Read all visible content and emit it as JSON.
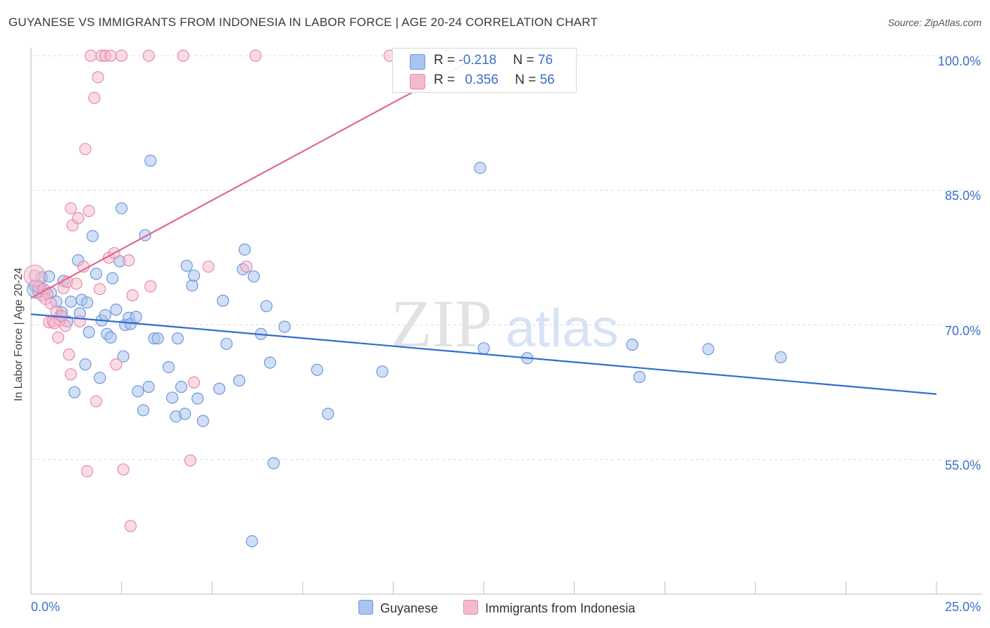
{
  "title": "GUYANESE VS IMMIGRANTS FROM INDONESIA IN LABOR FORCE | AGE 20-24 CORRELATION CHART",
  "source": "Source: ZipAtlas.com",
  "watermark": {
    "zip": "ZIP",
    "atlas": "atlas"
  },
  "legend_stats": {
    "guyanese": {
      "r_label": "R = ",
      "r_value": "-0.218",
      "n_label": "N = ",
      "n_value": "76"
    },
    "indonesia": {
      "r_label": "R = ",
      "r_value": "0.356",
      "n_label": "N = ",
      "n_value": "56"
    }
  },
  "colors": {
    "guyanese_fill": "#a9c4ee",
    "guyanese_stroke": "#6d98dc",
    "guyanese_line": "#2f6fcf",
    "indonesia_fill": "#f5b9cc",
    "indonesia_stroke": "#e98aa8",
    "indonesia_line": "#e2678f",
    "axis_label": "#3a6fc8"
  },
  "chart_data": {
    "type": "scatter",
    "title": "GUYANESE VS IMMIGRANTS FROM INDONESIA IN LABOR FORCE | AGE 20-24 CORRELATION CHART",
    "xlabel": "",
    "ylabel": "In Labor Force | Age 20-24",
    "xlim": [
      0,
      25
    ],
    "ylim": [
      40,
      101.5
    ],
    "x_tick_labels": [
      "0.0%",
      "25.0%"
    ],
    "y_ticks": [
      55,
      70,
      85,
      100
    ],
    "y_tick_labels": [
      "55.0%",
      "70.0%",
      "85.0%",
      "100.0%"
    ],
    "grid": true,
    "legend_position": "bottom-center",
    "series": [
      {
        "name": "Guyanese",
        "trend": {
          "x": [
            0,
            25
          ],
          "y": [
            71.2,
            62.3
          ]
        },
        "points": [
          [
            0.1,
            74.4
          ],
          [
            0.3,
            75.3
          ],
          [
            0.4,
            73.8
          ],
          [
            0.5,
            75.4
          ],
          [
            0.55,
            73.6
          ],
          [
            0.7,
            72.6
          ],
          [
            0.8,
            71.0
          ],
          [
            0.85,
            71.4
          ],
          [
            0.9,
            74.9
          ],
          [
            1.0,
            70.4
          ],
          [
            1.1,
            72.6
          ],
          [
            1.2,
            62.5
          ],
          [
            1.3,
            77.2
          ],
          [
            1.4,
            72.8
          ],
          [
            1.5,
            65.6
          ],
          [
            1.55,
            72.5
          ],
          [
            1.6,
            69.2
          ],
          [
            1.7,
            79.9
          ],
          [
            1.8,
            75.7
          ],
          [
            1.9,
            64.1
          ],
          [
            1.95,
            70.5
          ],
          [
            2.05,
            71.1
          ],
          [
            2.1,
            69.0
          ],
          [
            2.2,
            68.6
          ],
          [
            2.25,
            75.2
          ],
          [
            2.35,
            71.7
          ],
          [
            2.45,
            77.1
          ],
          [
            2.5,
            83.0
          ],
          [
            2.55,
            66.5
          ],
          [
            2.6,
            70.0
          ],
          [
            2.7,
            70.8
          ],
          [
            2.75,
            70.1
          ],
          [
            2.9,
            70.9
          ],
          [
            2.95,
            62.6
          ],
          [
            3.1,
            60.5
          ],
          [
            3.15,
            80.0
          ],
          [
            3.25,
            63.1
          ],
          [
            3.3,
            88.3
          ],
          [
            3.4,
            68.5
          ],
          [
            3.8,
            65.3
          ],
          [
            3.9,
            61.9
          ],
          [
            4.0,
            59.8
          ],
          [
            4.05,
            68.5
          ],
          [
            4.15,
            63.1
          ],
          [
            4.25,
            60.1
          ],
          [
            4.3,
            76.6
          ],
          [
            4.45,
            74.4
          ],
          [
            4.5,
            75.5
          ],
          [
            4.6,
            61.8
          ],
          [
            4.75,
            59.3
          ],
          [
            5.2,
            62.9
          ],
          [
            5.3,
            72.7
          ],
          [
            5.4,
            67.9
          ],
          [
            5.75,
            63.8
          ],
          [
            5.85,
            76.2
          ],
          [
            5.9,
            78.4
          ],
          [
            6.1,
            45.9
          ],
          [
            6.15,
            75.4
          ],
          [
            6.35,
            69.0
          ],
          [
            6.5,
            72.1
          ],
          [
            6.6,
            65.8
          ],
          [
            6.7,
            54.6
          ],
          [
            7.0,
            69.8
          ],
          [
            7.9,
            65.0
          ],
          [
            8.2,
            60.1
          ],
          [
            9.7,
            64.8
          ],
          [
            12.4,
            87.5
          ],
          [
            12.5,
            67.4
          ],
          [
            13.7,
            66.3
          ],
          [
            16.6,
            67.8
          ],
          [
            16.8,
            64.2
          ],
          [
            18.7,
            67.3
          ],
          [
            20.7,
            66.4
          ],
          [
            0.2,
            73.7
          ],
          [
            1.35,
            71.3
          ],
          [
            3.5,
            68.5
          ]
        ]
      },
      {
        "name": "Immigrants from Indonesia",
        "trend": {
          "x": [
            0,
            12.4
          ],
          "y": [
            73.0,
            100.0
          ]
        },
        "points": [
          [
            0.1,
            75.5
          ],
          [
            0.2,
            74.2
          ],
          [
            0.3,
            73.3
          ],
          [
            0.35,
            74.0
          ],
          [
            0.4,
            72.9
          ],
          [
            0.5,
            70.3
          ],
          [
            0.55,
            72.4
          ],
          [
            0.6,
            70.4
          ],
          [
            0.7,
            71.5
          ],
          [
            0.75,
            68.6
          ],
          [
            0.8,
            70.5
          ],
          [
            0.85,
            71.0
          ],
          [
            0.9,
            74.1
          ],
          [
            0.95,
            69.9
          ],
          [
            1.0,
            74.8
          ],
          [
            1.05,
            66.7
          ],
          [
            1.1,
            64.5
          ],
          [
            1.1,
            83.0
          ],
          [
            1.15,
            81.1
          ],
          [
            1.25,
            74.6
          ],
          [
            1.3,
            81.9
          ],
          [
            1.35,
            70.4
          ],
          [
            1.45,
            76.5
          ],
          [
            1.5,
            89.6
          ],
          [
            1.55,
            53.7
          ],
          [
            1.6,
            82.7
          ],
          [
            1.65,
            100.0
          ],
          [
            1.75,
            95.3
          ],
          [
            1.8,
            61.5
          ],
          [
            1.85,
            97.6
          ],
          [
            1.95,
            100.0
          ],
          [
            2.05,
            100.0
          ],
          [
            2.15,
            77.5
          ],
          [
            2.2,
            100.0
          ],
          [
            2.3,
            78.0
          ],
          [
            2.35,
            65.6
          ],
          [
            2.5,
            100.0
          ],
          [
            2.55,
            53.9
          ],
          [
            2.7,
            77.2
          ],
          [
            2.75,
            47.6
          ],
          [
            2.8,
            73.3
          ],
          [
            3.3,
            74.3
          ],
          [
            3.25,
            100.0
          ],
          [
            4.2,
            100.0
          ],
          [
            4.4,
            54.9
          ],
          [
            4.5,
            63.6
          ],
          [
            4.9,
            76.5
          ],
          [
            5.95,
            76.5
          ],
          [
            6.2,
            100.0
          ],
          [
            9.9,
            100.0
          ],
          [
            10.6,
            100.0
          ],
          [
            10.8,
            100.0
          ],
          [
            11.4,
            100.0
          ],
          [
            0.65,
            70.2
          ],
          [
            1.9,
            74.0
          ],
          [
            0.45,
            73.5
          ]
        ]
      }
    ]
  },
  "bottom_legend": {
    "guyanese": "Guyanese",
    "indonesia": "Immigrants from Indonesia"
  }
}
